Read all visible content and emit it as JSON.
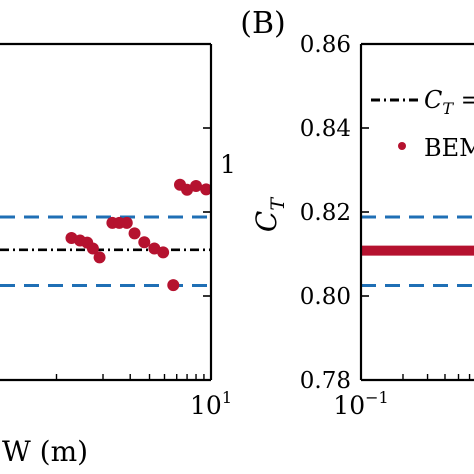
{
  "panel_label": "(B)",
  "colors": {
    "scatter": "#b5122f",
    "band": "#1f6fb5",
    "reference": "#000000",
    "axes": "#000000"
  },
  "chart_data": [
    {
      "type": "scatter",
      "panel": "A",
      "xlabel_visible": "W (m)",
      "xscale": "log",
      "xlim": [
        0.1,
        10
      ],
      "x_tick_labels": [
        {
          "base": "10",
          "exp": "1"
        }
      ],
      "ylim": [
        0.78,
        0.86
      ],
      "y_tick_label_fragment": "1",
      "series": [
        {
          "kind": "points",
          "points": [
            {
              "x": 1.25,
              "y": 0.8138
            },
            {
              "x": 1.42,
              "y": 0.8132
            },
            {
              "x": 1.58,
              "y": 0.8127
            },
            {
              "x": 1.72,
              "y": 0.8113
            },
            {
              "x": 1.9,
              "y": 0.8092
            },
            {
              "x": 2.3,
              "y": 0.8174
            },
            {
              "x": 2.55,
              "y": 0.8174
            },
            {
              "x": 2.85,
              "y": 0.8174
            },
            {
              "x": 3.2,
              "y": 0.8149
            },
            {
              "x": 3.7,
              "y": 0.8128
            },
            {
              "x": 4.3,
              "y": 0.8113
            },
            {
              "x": 4.9,
              "y": 0.8104
            },
            {
              "x": 5.7,
              "y": 0.8026
            },
            {
              "x": 6.3,
              "y": 0.8265
            },
            {
              "x": 7.0,
              "y": 0.8253
            },
            {
              "x": 8.0,
              "y": 0.8262
            },
            {
              "x": 9.3,
              "y": 0.8254
            }
          ]
        },
        {
          "kind": "hline",
          "style": "dashdot",
          "y": 0.811
        },
        {
          "kind": "hline",
          "style": "dashed",
          "y": 0.8188
        },
        {
          "kind": "hline",
          "style": "dashed",
          "y": 0.8025
        }
      ]
    },
    {
      "type": "scatter",
      "panel": "B",
      "ylabel": {
        "base": "C",
        "sub": "T"
      },
      "xscale": "log",
      "xlim": [
        0.1,
        10
      ],
      "x_tick_labels": [
        {
          "base": "10",
          "exp": "−1"
        }
      ],
      "ylim": [
        0.78,
        0.86
      ],
      "y_ticks": [
        0.78,
        0.8,
        0.82,
        0.84,
        0.86
      ],
      "y_tick_labels": [
        "0.78",
        "0.80",
        "0.82",
        "0.84",
        "0.86"
      ],
      "legend": {
        "position": "top-right",
        "entries": [
          {
            "label_base": "C",
            "label_sub": "T",
            "label_tail": " =",
            "style": "dashdot"
          },
          {
            "label_base": "BEM",
            "label_sub": "",
            "label_tail": "",
            "style": "marker"
          }
        ]
      },
      "series": [
        {
          "kind": "dense-band",
          "y": 0.8108,
          "x_range": [
            0.1,
            10
          ]
        },
        {
          "kind": "hline",
          "style": "dashed",
          "y": 0.8188
        },
        {
          "kind": "hline",
          "style": "dashed",
          "y": 0.8025
        }
      ]
    }
  ]
}
